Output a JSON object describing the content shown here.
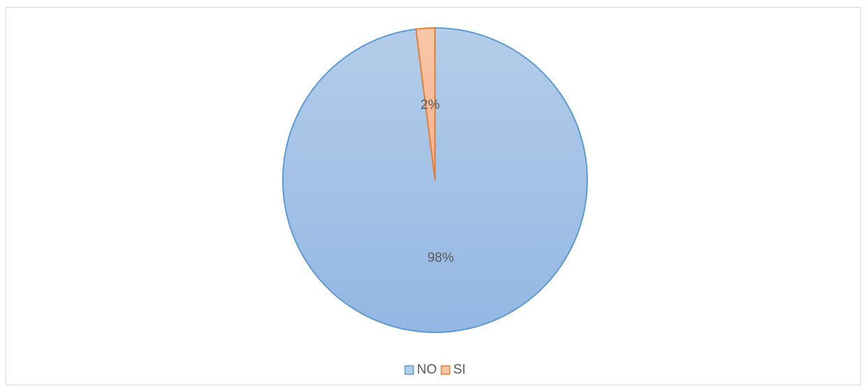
{
  "chart_data": {
    "type": "pie",
    "categories": [
      "NO",
      "SI"
    ],
    "values": [
      98,
      2
    ],
    "data_labels": [
      "98%",
      "2%"
    ],
    "legend_placement": "bottom",
    "colors": {
      "NO": {
        "fill_top": "#b4cde9",
        "fill_bottom": "#93b7e3",
        "stroke": "#5b9bd5"
      },
      "SI": {
        "fill_top": "#f8c7a9",
        "fill_bottom": "#f5b08e",
        "stroke": "#ed7d31"
      }
    }
  }
}
